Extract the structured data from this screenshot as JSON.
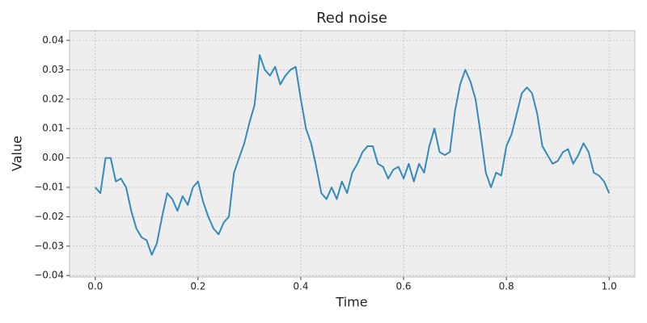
{
  "chart_data": {
    "type": "line",
    "title": "Red noise",
    "x_label": "Time",
    "y_label": "Value",
    "x": [
      0.0,
      0.01,
      0.02,
      0.03,
      0.04,
      0.05,
      0.06,
      0.07,
      0.08,
      0.09,
      0.1,
      0.11,
      0.12,
      0.13,
      0.14,
      0.15,
      0.16,
      0.17,
      0.18,
      0.19,
      0.2,
      0.21,
      0.22,
      0.23,
      0.24,
      0.25,
      0.26,
      0.27,
      0.28,
      0.29,
      0.3,
      0.31,
      0.32,
      0.33,
      0.34,
      0.35,
      0.36,
      0.37,
      0.38,
      0.39,
      0.4,
      0.41,
      0.42,
      0.43,
      0.44,
      0.45,
      0.46,
      0.47,
      0.48,
      0.49,
      0.5,
      0.51,
      0.52,
      0.53,
      0.54,
      0.55,
      0.56,
      0.57,
      0.58,
      0.59,
      0.6,
      0.61,
      0.62,
      0.63,
      0.64,
      0.65,
      0.66,
      0.67,
      0.68,
      0.69,
      0.7,
      0.71,
      0.72,
      0.73,
      0.74,
      0.75,
      0.76,
      0.77,
      0.78,
      0.79,
      0.8,
      0.81,
      0.82,
      0.83,
      0.84,
      0.85,
      0.86,
      0.87,
      0.88,
      0.89,
      0.9,
      0.91,
      0.92,
      0.93,
      0.94,
      0.95,
      0.96,
      0.97,
      0.98,
      0.99,
      1.0
    ],
    "series": [
      {
        "color": "#348abd",
        "values": [
          -0.01,
          -0.012,
          0.0,
          0.0,
          -0.008,
          -0.007,
          -0.01,
          -0.018,
          -0.024,
          -0.027,
          -0.028,
          -0.033,
          -0.029,
          -0.02,
          -0.012,
          -0.014,
          -0.018,
          -0.013,
          -0.016,
          -0.01,
          -0.008,
          -0.015,
          -0.02,
          -0.024,
          -0.026,
          -0.022,
          -0.02,
          -0.005,
          0.0,
          0.005,
          0.012,
          0.018,
          0.035,
          0.03,
          0.028,
          0.031,
          0.025,
          0.028,
          0.03,
          0.031,
          0.02,
          0.01,
          0.005,
          -0.003,
          -0.012,
          -0.014,
          -0.01,
          -0.014,
          -0.008,
          -0.012,
          -0.005,
          -0.002,
          0.002,
          0.004,
          0.004,
          -0.002,
          -0.003,
          -0.007,
          -0.004,
          -0.003,
          -0.007,
          -0.002,
          -0.008,
          -0.002,
          -0.005,
          0.004,
          0.01,
          0.002,
          0.001,
          0.002,
          0.016,
          0.025,
          0.03,
          0.026,
          0.02,
          0.008,
          -0.005,
          -0.01,
          -0.005,
          -0.006,
          0.004,
          0.008,
          0.015,
          0.022,
          0.024,
          0.022,
          0.015,
          0.004,
          0.001,
          -0.002,
          -0.001,
          0.002,
          0.003,
          -0.002,
          0.001,
          0.005,
          0.002,
          -0.005,
          -0.006,
          -0.008,
          -0.012
        ]
      }
    ],
    "xlim": [
      -0.05,
      1.05
    ],
    "ylim": [
      -0.0405,
      0.0433
    ],
    "xticks": [
      {
        "value": 0,
        "label": "0.0"
      },
      {
        "value": 0.2,
        "label": "0.2"
      },
      {
        "value": 0.4,
        "label": "0.4"
      },
      {
        "value": 0.6,
        "label": "0.6"
      },
      {
        "value": 0.8,
        "label": "0.8"
      },
      {
        "value": 1,
        "label": "1.0"
      }
    ],
    "yticks": [
      {
        "value": -0.04,
        "label": "−0.04"
      },
      {
        "value": -0.03,
        "label": "−0.03"
      },
      {
        "value": -0.02,
        "label": "−0.02"
      },
      {
        "value": -0.01,
        "label": "−0.01"
      },
      {
        "value": 0,
        "label": "0.00"
      },
      {
        "value": 0.01,
        "label": "0.01"
      },
      {
        "value": 0.02,
        "label": "0.02"
      },
      {
        "value": 0.03,
        "label": "0.03"
      },
      {
        "value": 0.04,
        "label": "0.04"
      }
    ],
    "grid": true
  }
}
